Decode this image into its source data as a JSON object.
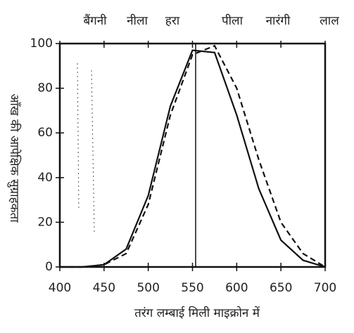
{
  "chart_data": {
    "type": "line",
    "top_labels": [
      "बैंगनी",
      "नीला",
      "हरा",
      "पीला",
      "नारंगी",
      "लाल"
    ],
    "xlabel": "तरंग लम्बाई मिली माइक्रोन में",
    "ylabel": "आँख की आपेक्षिक सुग्राहकता",
    "x": [
      400,
      425,
      450,
      475,
      500,
      525,
      550,
      575,
      600,
      625,
      650,
      675,
      700
    ],
    "series": [
      {
        "color": "#111111",
        "dash": false,
        "values": [
          0,
          0,
          1,
          8,
          32,
          72,
          97,
          96,
          68,
          35,
          12,
          3,
          0
        ]
      },
      {
        "color": "#333333",
        "dash": true,
        "values": [
          0,
          0,
          1,
          6,
          28,
          68,
          95,
          99,
          80,
          48,
          20,
          6,
          0
        ]
      }
    ],
    "xlim": [
      400,
      700
    ],
    "xticks": [
      400,
      450,
      500,
      550,
      600,
      650,
      700
    ],
    "ylim": [
      0,
      100
    ],
    "yticks": [
      0,
      20,
      40,
      60,
      80,
      100
    ]
  }
}
